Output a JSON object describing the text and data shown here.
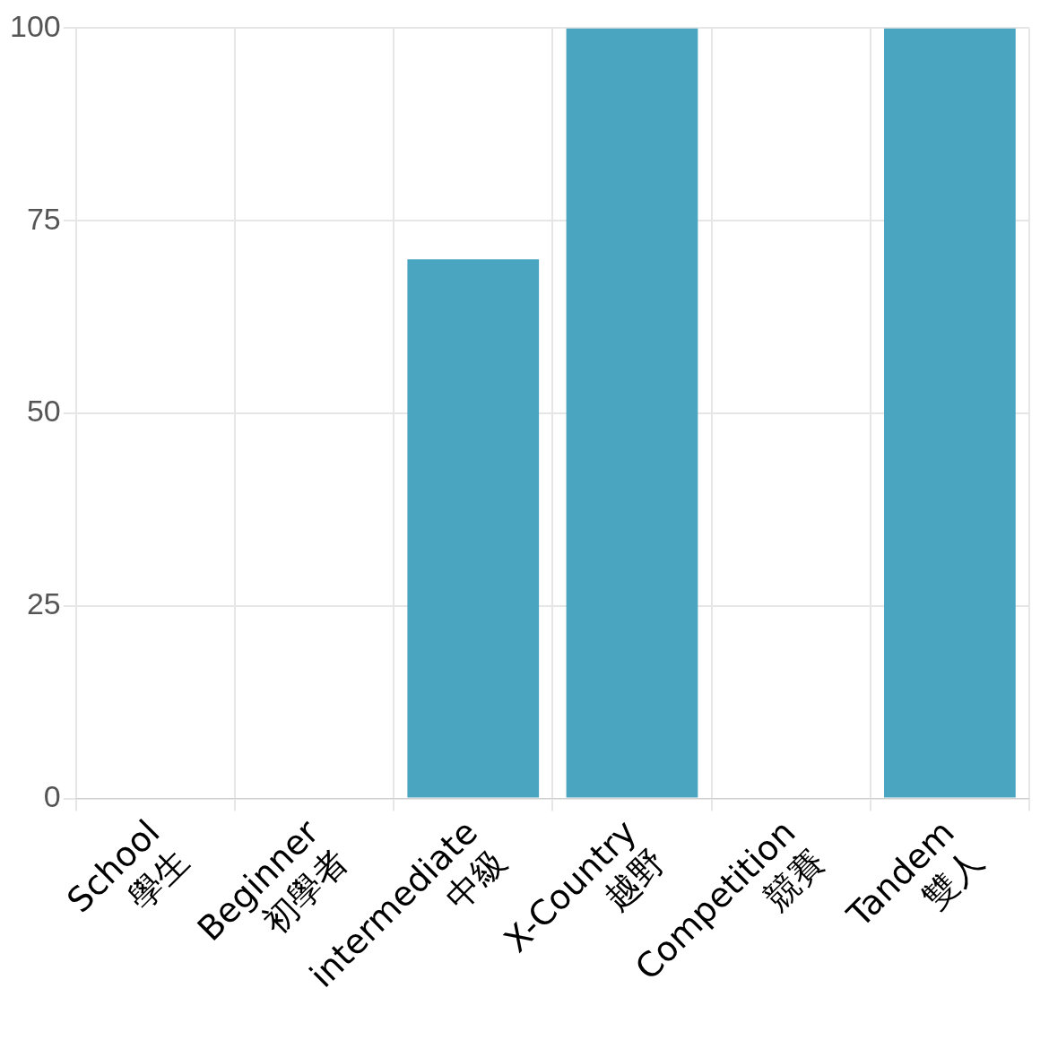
{
  "chart_data": {
    "type": "bar",
    "categories": [
      "School\n學生",
      "Beginner\n初學者",
      "intermediate\n中級",
      "X-Country\n越野",
      "Competition\n競賽",
      "Tandem\n雙人"
    ],
    "values": [
      0,
      0,
      70,
      100,
      0,
      100
    ],
    "color": "#4aa5c0",
    "ylim": [
      0,
      100
    ],
    "yticks": [
      0,
      25,
      50,
      75,
      100
    ],
    "grid": true,
    "legend": false
  }
}
